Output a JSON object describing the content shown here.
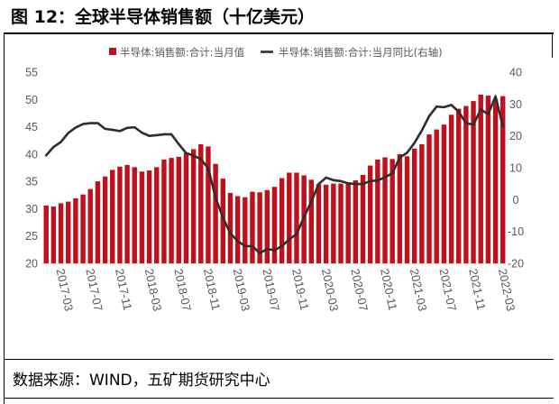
{
  "figure": {
    "title": "图 12：全球半导体销售额（十亿美元）",
    "source": "数据来源：WIND，五矿期货研究中心"
  },
  "colors": {
    "bar": "#C0101C",
    "line": "#2E2E2E"
  },
  "chart_data": {
    "type": "bar",
    "legend": "top",
    "grid": false,
    "x_tick_labels": [
      "2017-03",
      "2017-07",
      "2017-11",
      "2018-03",
      "2018-07",
      "2018-11",
      "2019-03",
      "2019-07",
      "2019-11",
      "2020-03",
      "2020-07",
      "2020-11",
      "2021-03",
      "2021-07",
      "2021-11",
      "2022-03"
    ],
    "y_left": {
      "range": [
        20,
        55
      ],
      "ticks": [
        55,
        50,
        45,
        40,
        35,
        30,
        25,
        20
      ]
    },
    "y_right": {
      "range": [
        -20,
        40
      ],
      "ticks": [
        40,
        30,
        20,
        10,
        0,
        -10,
        -20
      ]
    },
    "series": [
      {
        "name": "半导体:销售额:合计:当月值",
        "type": "bar",
        "y_axis": "left",
        "values": [
          30.6,
          30.4,
          31.0,
          31.3,
          31.9,
          32.6,
          33.6,
          35.0,
          35.9,
          37.1,
          37.7,
          38.0,
          37.6,
          36.8,
          37.0,
          37.6,
          39.0,
          39.3,
          39.5,
          40.2,
          40.9,
          41.8,
          41.4,
          38.2,
          35.5,
          32.9,
          32.3,
          32.1,
          33.1,
          33.0,
          33.4,
          34.0,
          35.6,
          36.6,
          36.6,
          36.1,
          35.3,
          34.5,
          34.4,
          34.6,
          34.6,
          34.8,
          35.2,
          36.2,
          37.9,
          39.0,
          39.4,
          39.1,
          40.0,
          39.6,
          41.0,
          41.8,
          43.6,
          44.5,
          45.4,
          47.2,
          48.3,
          48.8,
          49.7,
          50.9,
          50.7,
          50.0,
          50.6
        ]
      },
      {
        "name": "半导体:销售额:合计:当月同比(右轴)",
        "type": "line",
        "y_axis": "right",
        "values": [
          13.9,
          16.5,
          18.1,
          20.9,
          22.6,
          23.7,
          24.0,
          24.0,
          22.2,
          21.9,
          21.5,
          22.5,
          22.7,
          21.0,
          20.0,
          20.2,
          20.5,
          20.5,
          17.4,
          14.6,
          13.8,
          12.7,
          9.8,
          0.6,
          -5.7,
          -10.6,
          -13.0,
          -14.6,
          -14.6,
          -16.8,
          -15.5,
          -15.9,
          -14.6,
          -12.5,
          -10.8,
          -5.5,
          -0.6,
          4.9,
          6.9,
          6.1,
          5.8,
          5.1,
          4.9,
          4.9,
          5.8,
          6.0,
          7.0,
          8.3,
          13.2,
          14.7,
          17.8,
          21.7,
          26.2,
          29.2,
          29.0,
          29.7,
          27.6,
          24.0,
          23.5,
          28.3,
          26.8,
          32.4,
          23.0
        ]
      }
    ]
  }
}
